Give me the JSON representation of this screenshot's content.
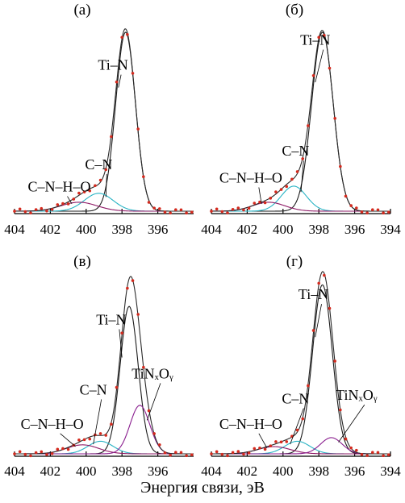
{
  "figure": {
    "xlabel": "Энергия связи, эВ"
  },
  "colors": {
    "data": "#d42a1e",
    "envelope": "#2a2a2a",
    "tin": "#1b1b1b",
    "cn": "#27b3c4",
    "cnho": "#8e1a66",
    "tinxoy": "#8a1f8f"
  },
  "chart_data": [
    {
      "type": "line",
      "panel_label": "(а)",
      "xlim": [
        404,
        394
      ],
      "xticks": [
        "404",
        "402",
        "400",
        "398",
        "396"
      ],
      "annotations": [
        {
          "text": "Ti–N",
          "x": 398.5,
          "y": 0.79
        },
        {
          "text": "C–N",
          "x": 399.3,
          "y": 0.235
        },
        {
          "text": "C–N–H–O",
          "x": 401.5,
          "y": 0.11
        }
      ],
      "components": [
        {
          "name": "Ti–N",
          "center": 397.8,
          "height": 1.0,
          "width": 0.55
        },
        {
          "name": "C–N",
          "center": 399.3,
          "height": 0.1,
          "width": 0.8
        },
        {
          "name": "C–N–H–O",
          "center": 400.4,
          "height": 0.05,
          "width": 1.0
        }
      ]
    },
    {
      "type": "line",
      "panel_label": "(б)",
      "xlim": [
        404,
        394
      ],
      "xticks": [
        "404",
        "402",
        "400",
        "398",
        "396",
        "394"
      ],
      "annotations": [
        {
          "text": "Ti–N",
          "x": 398.2,
          "y": 0.93
        },
        {
          "text": "C–N",
          "x": 399.3,
          "y": 0.31
        },
        {
          "text": "C–N–H–O",
          "x": 401.8,
          "y": 0.16
        }
      ],
      "components": [
        {
          "name": "Ti–N",
          "center": 397.8,
          "height": 1.0,
          "width": 0.6
        },
        {
          "name": "C–N",
          "center": 399.4,
          "height": 0.14,
          "width": 0.7
        },
        {
          "name": "C–N–H–O",
          "center": 400.8,
          "height": 0.05,
          "width": 0.9
        }
      ]
    },
    {
      "type": "line",
      "panel_label": "(в)",
      "xlim": [
        404,
        394
      ],
      "xticks": [
        "404",
        "402",
        "400",
        "398",
        "396"
      ],
      "annotations": [
        {
          "text": "Ti–N",
          "x": 398.6,
          "y": 0.72
        },
        {
          "text": "C–N",
          "x": 399.6,
          "y": 0.33
        },
        {
          "text": "C–N–H–O",
          "x": 401.9,
          "y": 0.14
        },
        {
          "text": "TiNₓOᵧ",
          "x": 396.3,
          "y": 0.42
        }
      ],
      "components": [
        {
          "name": "Ti–N",
          "center": 397.6,
          "height": 0.82,
          "width": 0.5
        },
        {
          "name": "C–N",
          "center": 399.2,
          "height": 0.07,
          "width": 0.7
        },
        {
          "name": "C–N–H–O",
          "center": 400.2,
          "height": 0.05,
          "width": 0.9
        },
        {
          "name": "TiNₓOᵧ",
          "center": 397.0,
          "height": 0.27,
          "width": 0.55
        }
      ]
    },
    {
      "type": "line",
      "panel_label": "(г)",
      "xlim": [
        404,
        394
      ],
      "xticks": [
        "404",
        "402",
        "400",
        "398",
        "396",
        "394"
      ],
      "annotations": [
        {
          "text": "Ti–N",
          "x": 398.3,
          "y": 0.86
        },
        {
          "text": "C–N",
          "x": 399.3,
          "y": 0.28
        },
        {
          "text": "C–N–H–O",
          "x": 401.8,
          "y": 0.14
        },
        {
          "text": "TiNₓOᵧ",
          "x": 395.9,
          "y": 0.3
        }
      ],
      "components": [
        {
          "name": "Ti–N",
          "center": 397.8,
          "height": 0.94,
          "width": 0.55
        },
        {
          "name": "C–N",
          "center": 399.2,
          "height": 0.07,
          "width": 0.7
        },
        {
          "name": "C–N–H–O",
          "center": 400.5,
          "height": 0.04,
          "width": 0.9
        },
        {
          "name": "TiNₓOᵧ",
          "center": 397.3,
          "height": 0.09,
          "width": 0.6
        }
      ]
    }
  ]
}
